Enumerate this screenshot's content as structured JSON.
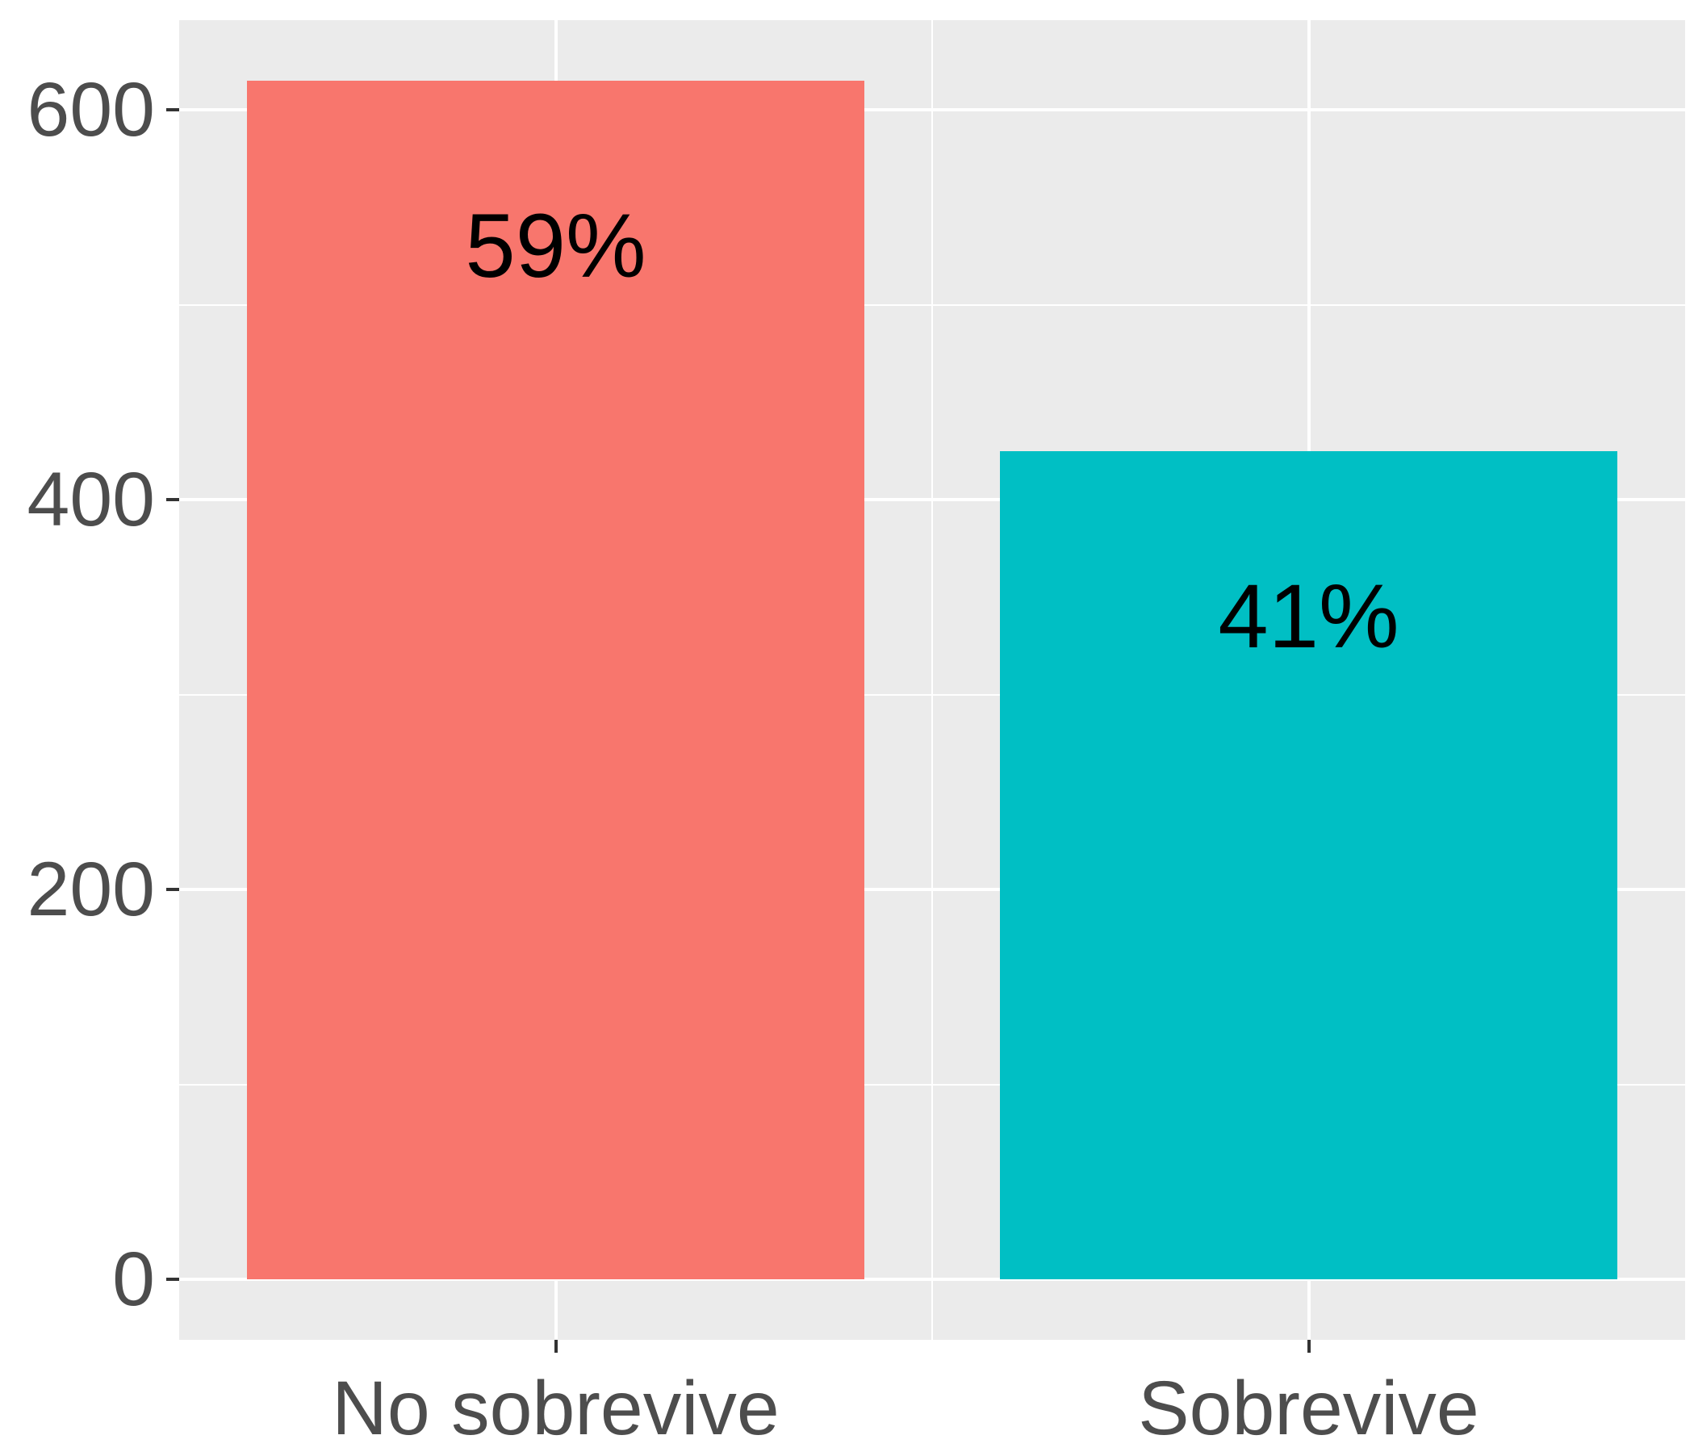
{
  "chart_data": {
    "type": "bar",
    "title": "",
    "xlabel": "",
    "ylabel": "",
    "categories": [
      "No sobrevive",
      "Sobrevive"
    ],
    "values": [
      615,
      425
    ],
    "bar_labels": [
      "59%",
      "41%"
    ],
    "bar_colors": [
      "#F8766D",
      "#00BFC4"
    ],
    "y_ticks": [
      0,
      200,
      400,
      600
    ],
    "y_minor_ticks": [
      100,
      300,
      500
    ],
    "ylim": [
      -31,
      646
    ],
    "grid": true,
    "legend_position": "none",
    "panel_background": "#EBEBEB",
    "grid_major_color": "#FFFFFF",
    "grid_minor_color": "#FFFFFF",
    "axis_text_color": "#4D4D4D",
    "tick_mark_color": "#333333",
    "bar_label_color": "#000000"
  }
}
